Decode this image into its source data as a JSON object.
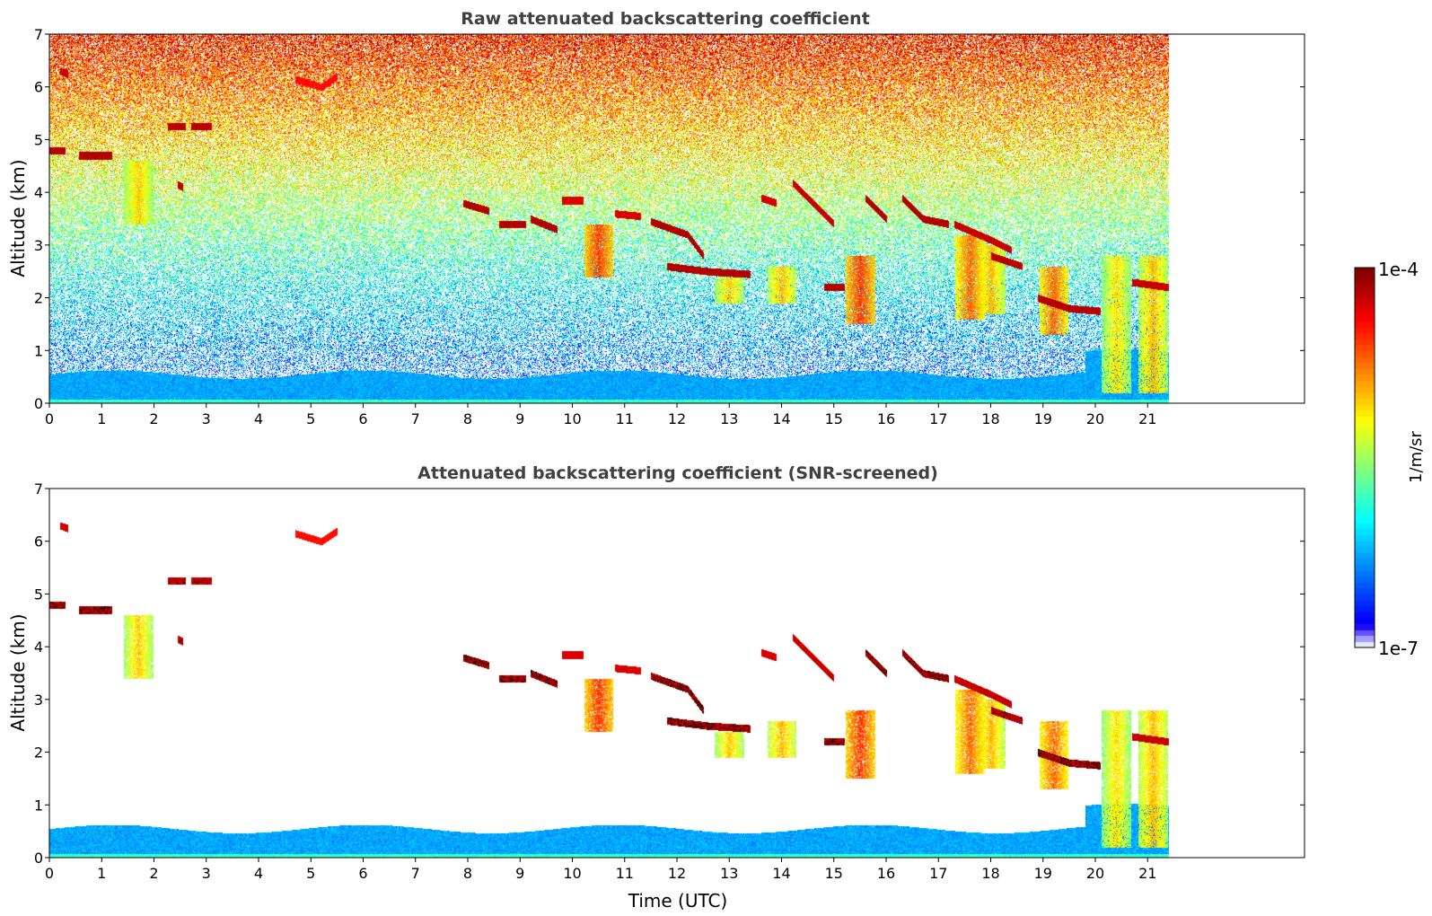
{
  "chart_data": [
    {
      "type": "heatmap",
      "title": "Raw attenuated backscattering coefficient",
      "xlabel": "",
      "ylabel": "Altitude (km)",
      "xlim": [
        0,
        24
      ],
      "ylim": [
        0,
        7
      ],
      "data_extent_x": [
        0,
        21.4
      ],
      "xticks": [
        "0",
        "1",
        "2",
        "3",
        "4",
        "5",
        "6",
        "7",
        "8",
        "9",
        "10",
        "11",
        "12",
        "13",
        "14",
        "15",
        "16",
        "17",
        "18",
        "19",
        "20",
        "21"
      ],
      "yticks": [
        "0",
        "1",
        "2",
        "3",
        "4",
        "5",
        "6",
        "7"
      ],
      "grid": false,
      "features": [
        {
          "kind": "noise_background",
          "top_km": 7
        },
        {
          "kind": "boundary_layer",
          "from_time": 0,
          "to_time": 21.4,
          "top_km": 0.6
        },
        {
          "kind": "layer",
          "points": [
            [
              0,
              4.8
            ],
            [
              0.3,
              4.8
            ]
          ],
          "intensity": 0.97
        },
        {
          "kind": "layer",
          "points": [
            [
              0.55,
              4.7
            ],
            [
              1.2,
              4.7
            ]
          ],
          "intensity": 0.97
        },
        {
          "kind": "layer",
          "points": [
            [
              0.2,
              6.3
            ],
            [
              0.35,
              6.25
            ]
          ],
          "intensity": 0.95
        },
        {
          "kind": "layer",
          "points": [
            [
              2.25,
              5.25
            ],
            [
              2.6,
              5.25
            ]
          ],
          "intensity": 0.96
        },
        {
          "kind": "layer",
          "points": [
            [
              2.7,
              5.25
            ],
            [
              3.1,
              5.25
            ]
          ],
          "intensity": 0.96
        },
        {
          "kind": "layer",
          "points": [
            [
              2.45,
              4.15
            ],
            [
              2.55,
              4.1
            ]
          ],
          "intensity": 0.96
        },
        {
          "kind": "layer",
          "points": [
            [
              4.7,
              6.15
            ],
            [
              5.2,
              6.0
            ],
            [
              5.5,
              6.2
            ]
          ],
          "intensity": 0.88
        },
        {
          "kind": "layer",
          "points": [
            [
              7.9,
              3.8
            ],
            [
              8.4,
              3.65
            ]
          ],
          "intensity": 0.97
        },
        {
          "kind": "layer",
          "points": [
            [
              8.6,
              3.4
            ],
            [
              9.1,
              3.4
            ]
          ],
          "intensity": 0.97
        },
        {
          "kind": "layer",
          "points": [
            [
              9.2,
              3.5
            ],
            [
              9.7,
              3.3
            ]
          ],
          "intensity": 0.97
        },
        {
          "kind": "layer",
          "points": [
            [
              9.8,
              3.85
            ],
            [
              10.2,
              3.85
            ]
          ],
          "intensity": 0.93
        },
        {
          "kind": "layer",
          "points": [
            [
              10.8,
              3.6
            ],
            [
              11.3,
              3.55
            ]
          ],
          "intensity": 0.93
        },
        {
          "kind": "layer",
          "points": [
            [
              11.5,
              3.45
            ],
            [
              12.2,
              3.2
            ],
            [
              12.5,
              2.8
            ]
          ],
          "intensity": 0.97
        },
        {
          "kind": "layer",
          "points": [
            [
              11.8,
              2.6
            ],
            [
              12.6,
              2.5
            ],
            [
              13.4,
              2.45
            ]
          ],
          "intensity": 0.97
        },
        {
          "kind": "layer",
          "points": [
            [
              13.6,
              3.9
            ],
            [
              13.9,
              3.8
            ]
          ],
          "intensity": 0.93
        },
        {
          "kind": "layer",
          "points": [
            [
              14.2,
              4.2
            ],
            [
              14.6,
              3.8
            ],
            [
              15.0,
              3.4
            ]
          ],
          "intensity": 0.95
        },
        {
          "kind": "layer",
          "points": [
            [
              14.8,
              2.2
            ],
            [
              15.2,
              2.2
            ]
          ],
          "intensity": 0.97
        },
        {
          "kind": "layer",
          "points": [
            [
              15.6,
              3.9
            ],
            [
              16.0,
              3.5
            ]
          ],
          "intensity": 0.97
        },
        {
          "kind": "layer",
          "points": [
            [
              16.3,
              3.9
            ],
            [
              16.7,
              3.5
            ],
            [
              17.2,
              3.4
            ]
          ],
          "intensity": 0.97
        },
        {
          "kind": "layer",
          "points": [
            [
              17.3,
              3.4
            ],
            [
              18.0,
              3.1
            ],
            [
              18.4,
              2.9
            ]
          ],
          "intensity": 0.95
        },
        {
          "kind": "layer",
          "points": [
            [
              18.0,
              2.8
            ],
            [
              18.6,
              2.6
            ]
          ],
          "intensity": 0.96
        },
        {
          "kind": "layer",
          "points": [
            [
              18.9,
              2.0
            ],
            [
              19.5,
              1.8
            ],
            [
              20.1,
              1.75
            ]
          ],
          "intensity": 0.97
        },
        {
          "kind": "layer",
          "points": [
            [
              20.7,
              2.3
            ],
            [
              21.4,
              2.2
            ]
          ],
          "intensity": 0.95
        },
        {
          "kind": "fallstreak",
          "time": 1.7,
          "top_km": 4.6,
          "bottom_km": 3.4,
          "intensity": 0.7
        },
        {
          "kind": "fallstreak",
          "time": 10.5,
          "top_km": 3.4,
          "bottom_km": 2.4,
          "intensity": 0.85
        },
        {
          "kind": "fallstreak",
          "time": 13.0,
          "top_km": 2.4,
          "bottom_km": 1.9,
          "intensity": 0.7
        },
        {
          "kind": "fallstreak",
          "time": 14.0,
          "top_km": 2.6,
          "bottom_km": 1.9,
          "intensity": 0.72
        },
        {
          "kind": "fallstreak",
          "time": 15.5,
          "top_km": 2.8,
          "bottom_km": 1.5,
          "intensity": 0.85
        },
        {
          "kind": "fallstreak",
          "time": 17.6,
          "top_km": 3.2,
          "bottom_km": 1.6,
          "intensity": 0.8
        },
        {
          "kind": "fallstreak",
          "time": 18.0,
          "top_km": 3.0,
          "bottom_km": 1.7,
          "intensity": 0.72
        },
        {
          "kind": "fallstreak",
          "time": 19.2,
          "top_km": 2.6,
          "bottom_km": 1.3,
          "intensity": 0.8
        },
        {
          "kind": "fallstreak",
          "time": 20.4,
          "top_km": 2.8,
          "bottom_km": 0.2,
          "intensity": 0.68
        },
        {
          "kind": "fallstreak",
          "time": 21.1,
          "top_km": 2.8,
          "bottom_km": 0.2,
          "intensity": 0.72
        }
      ]
    },
    {
      "type": "heatmap",
      "title": "Attenuated backscattering coefficient (SNR-screened)",
      "xlabel": "Time (UTC)",
      "ylabel": "Altitude (km)",
      "xlim": [
        0,
        24
      ],
      "ylim": [
        0,
        7
      ],
      "data_extent_x": [
        0,
        21.4
      ],
      "xticks": [
        "0",
        "1",
        "2",
        "3",
        "4",
        "5",
        "6",
        "7",
        "8",
        "9",
        "10",
        "11",
        "12",
        "13",
        "14",
        "15",
        "16",
        "17",
        "18",
        "19",
        "20",
        "21"
      ],
      "yticks": [
        "0",
        "1",
        "2",
        "3",
        "4",
        "5",
        "6",
        "7"
      ],
      "grid": false,
      "screened": true,
      "saturated_color": "#000000"
    }
  ],
  "colorbar": {
    "min_label": "1e-7",
    "max_label": "1e-4",
    "label": "1/m/sr",
    "scale": "log",
    "colormap": "jet"
  }
}
